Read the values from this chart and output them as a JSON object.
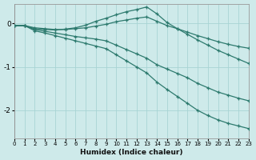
{
  "xlabel": "Humidex (Indice chaleur)",
  "background_color": "#ceeaea",
  "grid_color": "#a8d4d4",
  "line_color": "#2d7a6e",
  "xlim": [
    0,
    23
  ],
  "ylim": [
    -2.65,
    0.45
  ],
  "yticks": [
    0,
    -1,
    -2
  ],
  "xticks": [
    0,
    1,
    2,
    3,
    4,
    5,
    6,
    7,
    8,
    9,
    10,
    11,
    12,
    13,
    14,
    15,
    16,
    17,
    18,
    19,
    20,
    21,
    22,
    23
  ],
  "curves": [
    {
      "x": [
        0,
        1,
        2,
        3,
        4,
        5,
        6,
        7,
        8,
        9,
        10,
        11,
        12,
        13,
        14,
        15,
        16,
        17,
        18,
        19,
        20,
        21,
        22,
        23
      ],
      "y": [
        -0.05,
        -0.05,
        -0.12,
        -0.14,
        -0.15,
        -0.13,
        -0.1,
        -0.04,
        0.05,
        0.12,
        0.2,
        0.27,
        0.32,
        0.38,
        0.22,
        0.02,
        -0.12,
        -0.25,
        -0.38,
        -0.5,
        -0.62,
        -0.72,
        -0.82,
        -0.92
      ]
    },
    {
      "x": [
        0,
        1,
        2,
        3,
        4,
        5,
        6,
        7,
        8,
        9,
        10,
        11,
        12,
        13,
        14,
        15,
        16,
        17,
        18,
        19,
        20,
        21,
        22,
        23
      ],
      "y": [
        -0.05,
        -0.05,
        -0.1,
        -0.12,
        -0.14,
        -0.14,
        -0.12,
        -0.1,
        -0.06,
        -0.02,
        0.04,
        0.08,
        0.12,
        0.15,
        0.05,
        -0.05,
        -0.12,
        -0.2,
        -0.28,
        -0.35,
        -0.42,
        -0.48,
        -0.53,
        -0.57
      ]
    },
    {
      "x": [
        0,
        1,
        2,
        3,
        4,
        5,
        6,
        7,
        8,
        9,
        10,
        11,
        12,
        13,
        14,
        15,
        16,
        17,
        18,
        19,
        20,
        21,
        22,
        23
      ],
      "y": [
        -0.05,
        -0.05,
        -0.14,
        -0.18,
        -0.22,
        -0.26,
        -0.3,
        -0.33,
        -0.36,
        -0.4,
        -0.5,
        -0.6,
        -0.7,
        -0.8,
        -0.95,
        -1.05,
        -1.15,
        -1.25,
        -1.38,
        -1.48,
        -1.58,
        -1.65,
        -1.72,
        -1.78
      ]
    },
    {
      "x": [
        0,
        1,
        2,
        3,
        4,
        5,
        6,
        7,
        8,
        9,
        10,
        11,
        12,
        13,
        14,
        15,
        16,
        17,
        18,
        19,
        20,
        21,
        22,
        23
      ],
      "y": [
        -0.05,
        -0.05,
        -0.17,
        -0.22,
        -0.28,
        -0.34,
        -0.4,
        -0.46,
        -0.52,
        -0.58,
        -0.72,
        -0.86,
        -1.0,
        -1.14,
        -1.35,
        -1.52,
        -1.68,
        -1.84,
        -2.0,
        -2.12,
        -2.22,
        -2.3,
        -2.36,
        -2.42
      ]
    }
  ]
}
